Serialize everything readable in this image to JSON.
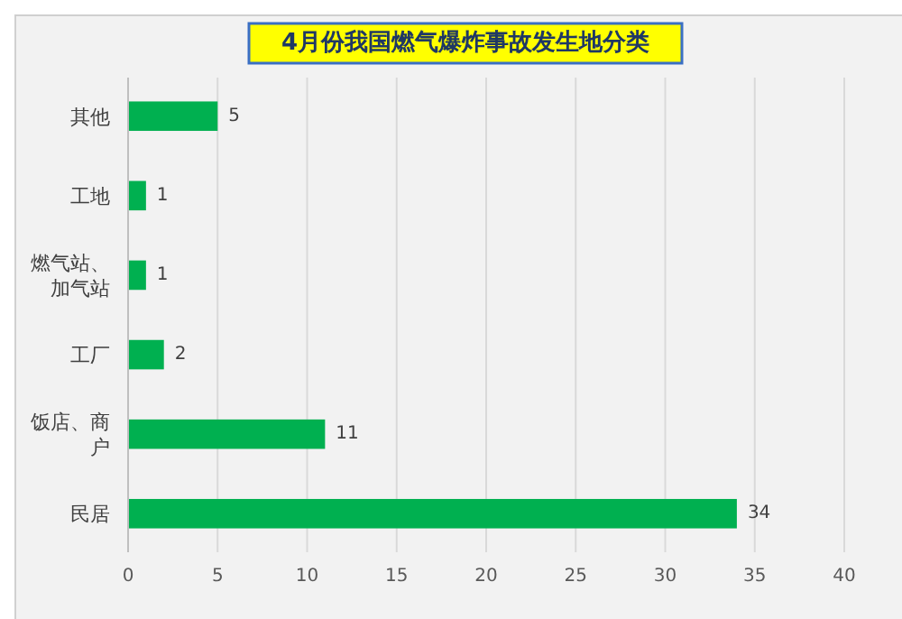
{
  "chart_data": {
    "type": "bar",
    "orientation": "horizontal",
    "title": "4月份我国燃气爆炸事故发生地分类",
    "categories": [
      "其他",
      "工地",
      "燃气站、加气站",
      "工厂",
      "饭店、商户",
      "民居"
    ],
    "values": [
      5,
      1,
      1,
      2,
      11,
      34
    ],
    "color": "#00b050",
    "data_labels": true,
    "xlim": [
      0,
      40
    ],
    "xticks": [
      0,
      5,
      10,
      15,
      20,
      25,
      30,
      35,
      40
    ],
    "grid": "x"
  }
}
